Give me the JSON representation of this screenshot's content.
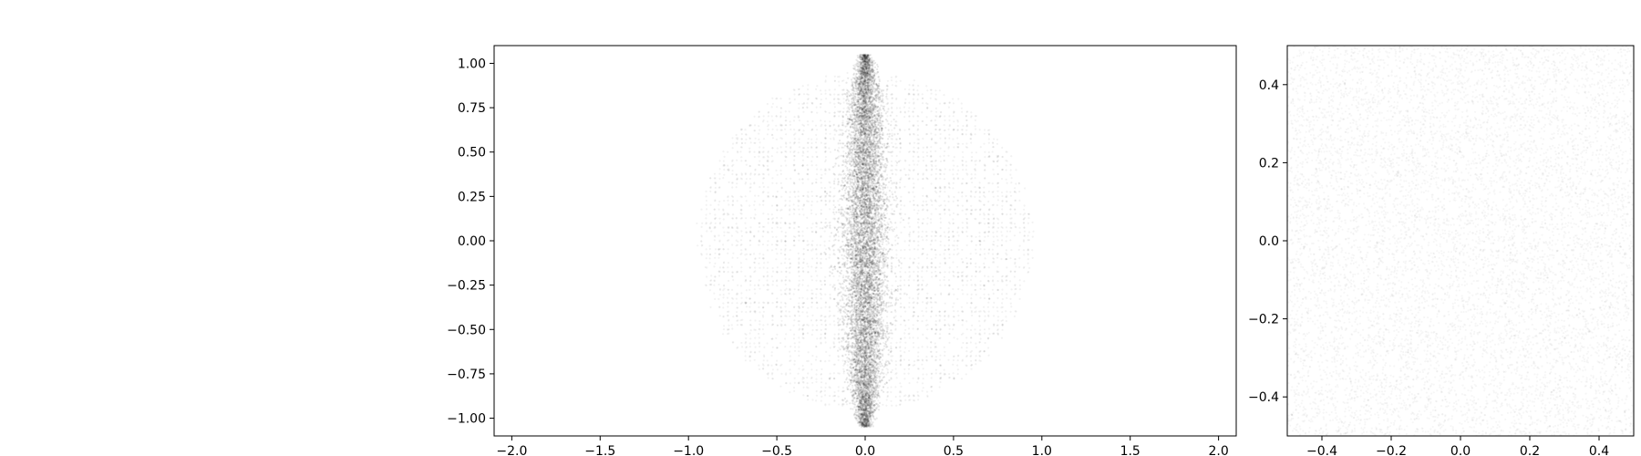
{
  "chart_data": [
    {
      "type": "scatter",
      "title": "",
      "xlabel": "",
      "ylabel": "",
      "xlim": [
        -2.1,
        2.1
      ],
      "ylim": [
        -1.1,
        1.1
      ],
      "xticks": [
        -2.0,
        -1.5,
        -1.0,
        -0.5,
        0.0,
        0.5,
        1.0,
        1.5,
        2.0
      ],
      "xtick_labels": [
        "−2.0",
        "−1.5",
        "−1.0",
        "−0.5",
        "0.0",
        "0.5",
        "1.0",
        "1.5",
        "2.0"
      ],
      "yticks": [
        -1.0,
        -0.75,
        -0.5,
        -0.25,
        0.0,
        0.25,
        0.5,
        0.75,
        1.0
      ],
      "ytick_labels": [
        "−1.00",
        "−0.75",
        "−0.50",
        "−0.25",
        "0.00",
        "0.25",
        "0.50",
        "0.75",
        "1.00"
      ],
      "grid": false,
      "marker_color": "#000000",
      "components": [
        {
          "shape": "disc",
          "center": [
            0.0,
            0.0
          ],
          "radius": 0.95,
          "spacing": 0.025,
          "count": 4500
        },
        {
          "shape": "gaussian-band",
          "center_x": 0.0,
          "std_x": 0.065,
          "y_range": [
            -1.05,
            1.05
          ],
          "count": 9000
        }
      ]
    },
    {
      "type": "scatter",
      "title": "",
      "xlabel": "",
      "ylabel": "",
      "xlim": [
        -0.5,
        0.5
      ],
      "ylim": [
        -0.5,
        0.5
      ],
      "xticks": [
        -0.4,
        -0.2,
        0.0,
        0.2,
        0.4
      ],
      "xtick_labels": [
        "−0.4",
        "−0.2",
        "0.0",
        "0.2",
        "0.4"
      ],
      "yticks": [
        -0.4,
        -0.2,
        0.0,
        0.2,
        0.4
      ],
      "ytick_labels": [
        "−0.4",
        "−0.2",
        "0.0",
        "0.2",
        "0.4"
      ],
      "grid": false,
      "marker_color": "#000000",
      "components": [
        {
          "shape": "uniform-square",
          "xlim": [
            -0.5,
            0.5
          ],
          "ylim": [
            -0.5,
            0.5
          ],
          "count": 9000
        }
      ]
    }
  ]
}
